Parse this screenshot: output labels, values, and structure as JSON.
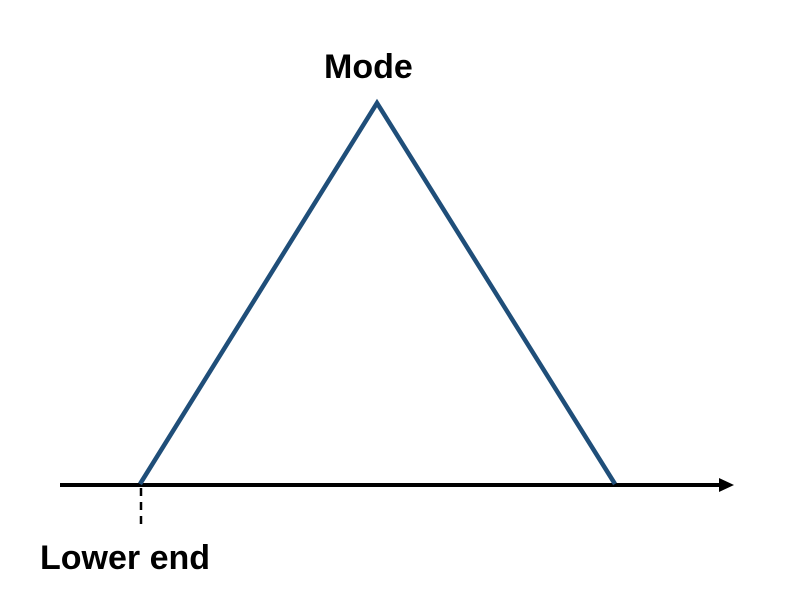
{
  "diagram": {
    "peak_label": "Mode",
    "lower_label": "Lower end",
    "colors": {
      "triangle": "#1f4e79",
      "axis": "#000000",
      "text": "#000000"
    }
  }
}
